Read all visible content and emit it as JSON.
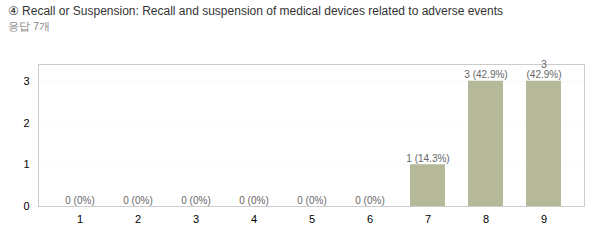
{
  "chart_data": {
    "type": "bar",
    "title": "④ Recall or Suspension: Recall and suspension of medical devices related to adverse events",
    "subtitle": "응답 7개",
    "categories": [
      1,
      2,
      3,
      4,
      5,
      6,
      7,
      8,
      9
    ],
    "values": [
      0,
      0,
      0,
      0,
      0,
      0,
      1,
      3,
      3
    ],
    "value_labels": [
      "0 (0%)",
      "0 (0%)",
      "0 (0%)",
      "0 (0%)",
      "0 (0%)",
      "0 (0%)",
      "1 (14.3%)",
      "3 (42.9%)",
      "3\n(42.9%)"
    ],
    "data_labels": true,
    "color": "#b5b899",
    "ylim": [
      0,
      3.4
    ],
    "yticks": [
      0,
      1,
      2,
      3
    ],
    "grid": true
  }
}
